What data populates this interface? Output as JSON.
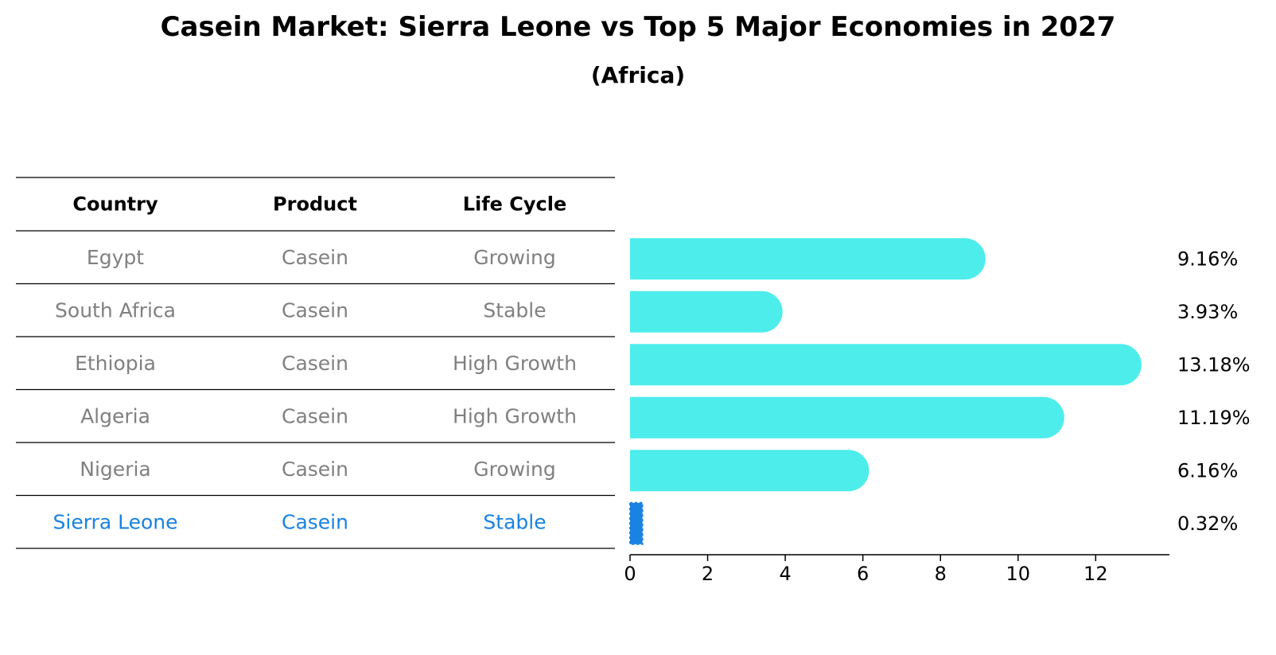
{
  "title": "Casein Market: Sierra Leone vs Top 5 Major Economies in 2027",
  "subtitle": "(Africa)",
  "table": {
    "headers": [
      "Country",
      "Product",
      "Life Cycle"
    ],
    "rows": [
      [
        "Egypt",
        "Casein",
        "Growing"
      ],
      [
        "South Africa",
        "Casein",
        "Stable"
      ],
      [
        "Ethiopia",
        "Casein",
        "High Growth"
      ],
      [
        "Algeria",
        "Casein",
        "High Growth"
      ],
      [
        "Nigeria",
        "Casein",
        "Growing"
      ],
      [
        "Sierra Leone",
        "Casein",
        "Stable"
      ]
    ],
    "highlight_row": 5
  },
  "colors": {
    "bar": "#4dedec",
    "highlight": "#1a82e2",
    "table_text": "#808080",
    "header_text": "#000000"
  },
  "chart_data": {
    "type": "bar",
    "orientation": "horizontal",
    "categories": [
      "Egypt",
      "South Africa",
      "Ethiopia",
      "Algeria",
      "Nigeria",
      "Sierra Leone"
    ],
    "values": [
      9.16,
      3.93,
      13.18,
      11.19,
      6.16,
      0.32
    ],
    "value_labels": [
      "9.16%",
      "3.93%",
      "13.18%",
      "11.19%",
      "6.16%",
      "0.32%"
    ],
    "xlim": [
      0,
      13.9
    ],
    "xticks": [
      0,
      2,
      4,
      6,
      8,
      10,
      12
    ],
    "highlight_category": "Sierra Leone",
    "grid": false
  }
}
